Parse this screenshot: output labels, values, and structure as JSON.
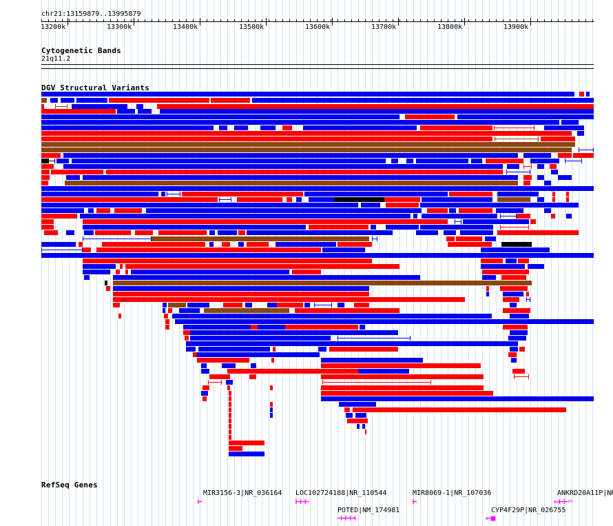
{
  "locus": "chr21:13159879..13995879",
  "ruler": {
    "start": 13159879,
    "end": 13995879,
    "ticks": [
      "13200k",
      "13300k",
      "13400k",
      "13500k",
      "13600k",
      "13700k",
      "13800k",
      "13900k"
    ],
    "tick_values": [
      13200000,
      13300000,
      13400000,
      13500000,
      13600000,
      13700000,
      13800000,
      13900000
    ]
  },
  "tracks": {
    "cytoband": {
      "title": "Cytogenetic Bands",
      "band": "21q11.2"
    },
    "dgv": {
      "title": "DGV Structural Variants"
    },
    "refseq": {
      "title": "RefSeq Genes"
    }
  },
  "colors": {
    "gain": "#0000ee",
    "loss": "#ff0000",
    "both": "#8b4513",
    "other": "#000000",
    "gene": "#ff00ff",
    "grid": "#cfe3ee"
  },
  "genes": [
    {
      "label": "MIR3156-3|NR_036164",
      "glyph": "⊢"
    },
    {
      "label": "LOC102724188|NR_110544",
      "glyph": "⊢⊢⊢"
    },
    {
      "label": "MIR8069-1|NR_107036",
      "glyph": "⊢"
    },
    {
      "label": "ANKRD20A11P|NR_",
      "glyph": "⟵⊢⊢⌒"
    },
    {
      "label": "POTED|NM_174981",
      "glyph": "⊣⊣⊣⊣"
    },
    {
      "label": "CYP4F29P|NR_026755",
      "glyph": "⟵■"
    }
  ]
}
